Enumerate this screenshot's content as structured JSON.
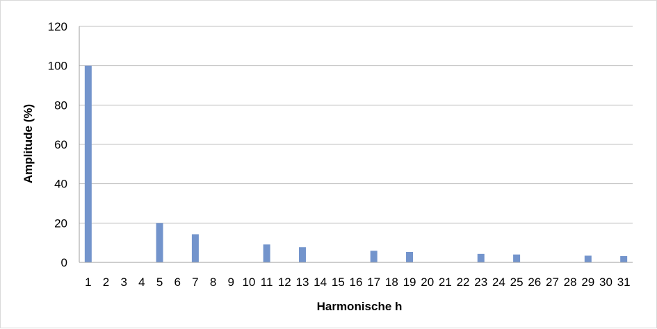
{
  "chart_data": {
    "type": "bar",
    "title": "",
    "xlabel": "Harmonische h",
    "ylabel": "Amplitude (%)",
    "categories": [
      "1",
      "2",
      "3",
      "4",
      "5",
      "6",
      "7",
      "8",
      "9",
      "10",
      "11",
      "12",
      "13",
      "14",
      "15",
      "16",
      "17",
      "18",
      "19",
      "20",
      "21",
      "22",
      "23",
      "24",
      "25",
      "26",
      "27",
      "28",
      "29",
      "30",
      "31"
    ],
    "series": [
      {
        "values": [
          100,
          0,
          0,
          0,
          20,
          0,
          14.3,
          0,
          0,
          0,
          9.1,
          0,
          7.7,
          0,
          0,
          0,
          5.9,
          0,
          5.3,
          0,
          0,
          0,
          4.3,
          0,
          4,
          0,
          0,
          0,
          3.4,
          0,
          3.2
        ]
      }
    ],
    "ylim": [
      0,
      120
    ],
    "yticks": [
      0,
      20,
      40,
      60,
      80,
      100,
      120
    ],
    "grid": true,
    "legend": "none",
    "colors": {
      "bar": "#7394cc",
      "grid": "#bfbfbf",
      "axis": "#9e9e9e"
    }
  }
}
